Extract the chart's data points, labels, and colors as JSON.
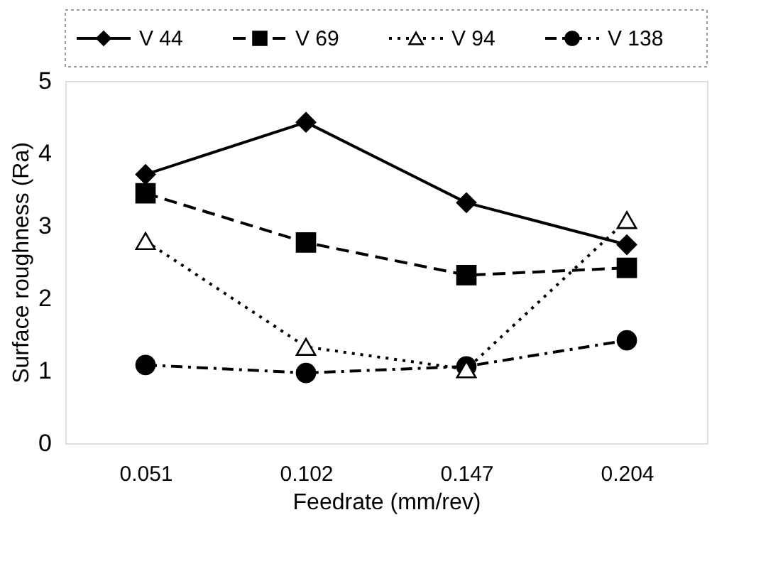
{
  "chart_data": {
    "type": "line",
    "xlabel": "Feedrate (mm/rev)",
    "ylabel": "Surface roughness (Ra)",
    "categories": [
      "0.051",
      "0.102",
      "0.147",
      "0.204"
    ],
    "series": [
      {
        "name": "V 44",
        "color": "#000000",
        "marker": "diamond",
        "line_style": "solid",
        "values": [
          3.71,
          4.43,
          3.32,
          2.74
        ]
      },
      {
        "name": "V 69",
        "color": "#000000",
        "marker": "square",
        "line_style": "dashed",
        "values": [
          3.45,
          2.77,
          2.32,
          2.42
        ]
      },
      {
        "name": "V 94",
        "color": "#000000",
        "marker": "triangle",
        "line_style": "dotted",
        "values": [
          2.79,
          1.33,
          1.02,
          3.08
        ]
      },
      {
        "name": "V 138",
        "color": "#000000",
        "marker": "circle",
        "line_style": "dashdot",
        "values": [
          1.08,
          0.97,
          1.06,
          1.42
        ]
      }
    ],
    "ylim": [
      0,
      5
    ],
    "yticks": [
      0,
      1,
      2,
      3,
      4,
      5
    ],
    "grid": false,
    "legend": "top"
  }
}
